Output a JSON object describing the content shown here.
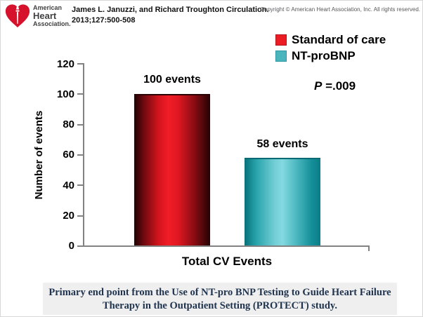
{
  "header": {
    "logo": {
      "line1": "American",
      "line2": "Heart",
      "line3": "Association."
    },
    "citation_line1": "James L. Januzzi, and Richard Troughton Circulation.",
    "citation_line2": "2013;127:500-508",
    "copyright": "Copyright © American Heart Association, Inc. All rights reserved."
  },
  "legend": {
    "items": [
      {
        "label": "Standard of care",
        "color": "#ec1c24"
      },
      {
        "label": "NT-proBNP",
        "color": "#4ab5bc"
      }
    ]
  },
  "annotation": {
    "p_symbol": "P",
    "p_value": " =.009"
  },
  "axes": {
    "ylabel": "Number of events",
    "yticks": [
      "120",
      "100",
      "80",
      "60",
      "40",
      "20",
      "0"
    ],
    "xlabel": "Total CV Events"
  },
  "bars": {
    "bar1_label": "100 events",
    "bar2_label": "58 events"
  },
  "caption": {
    "line1": "Primary end point from the Use of NT-pro BNP Testing to Guide Heart Failure",
    "line2": "Therapy in the Outpatient Setting (PROTECT) study."
  },
  "colors": {
    "red_bright": "#ec1c24",
    "red_dark": "#230304",
    "teal_bright": "#7fd6de",
    "teal_dark": "#0b7d86",
    "axis_gray": "#828282",
    "caption_bg": "#efefef",
    "caption_text": "#20344f",
    "logo_red": "#d6112b"
  },
  "chart_data": {
    "type": "bar",
    "categories": [
      "Total CV Events"
    ],
    "series": [
      {
        "name": "Standard of care",
        "values": [
          100
        ]
      },
      {
        "name": "NT-proBNP",
        "values": [
          58
        ]
      }
    ],
    "title": "",
    "xlabel": "Total CV Events",
    "ylabel": "Number of events",
    "ylim": [
      0,
      120
    ],
    "ytick_step": 20,
    "bar_value_labels": [
      "100 events",
      "58 events"
    ],
    "annotations": [
      "P =.009"
    ],
    "legend_position": "top-right",
    "grid": false
  }
}
